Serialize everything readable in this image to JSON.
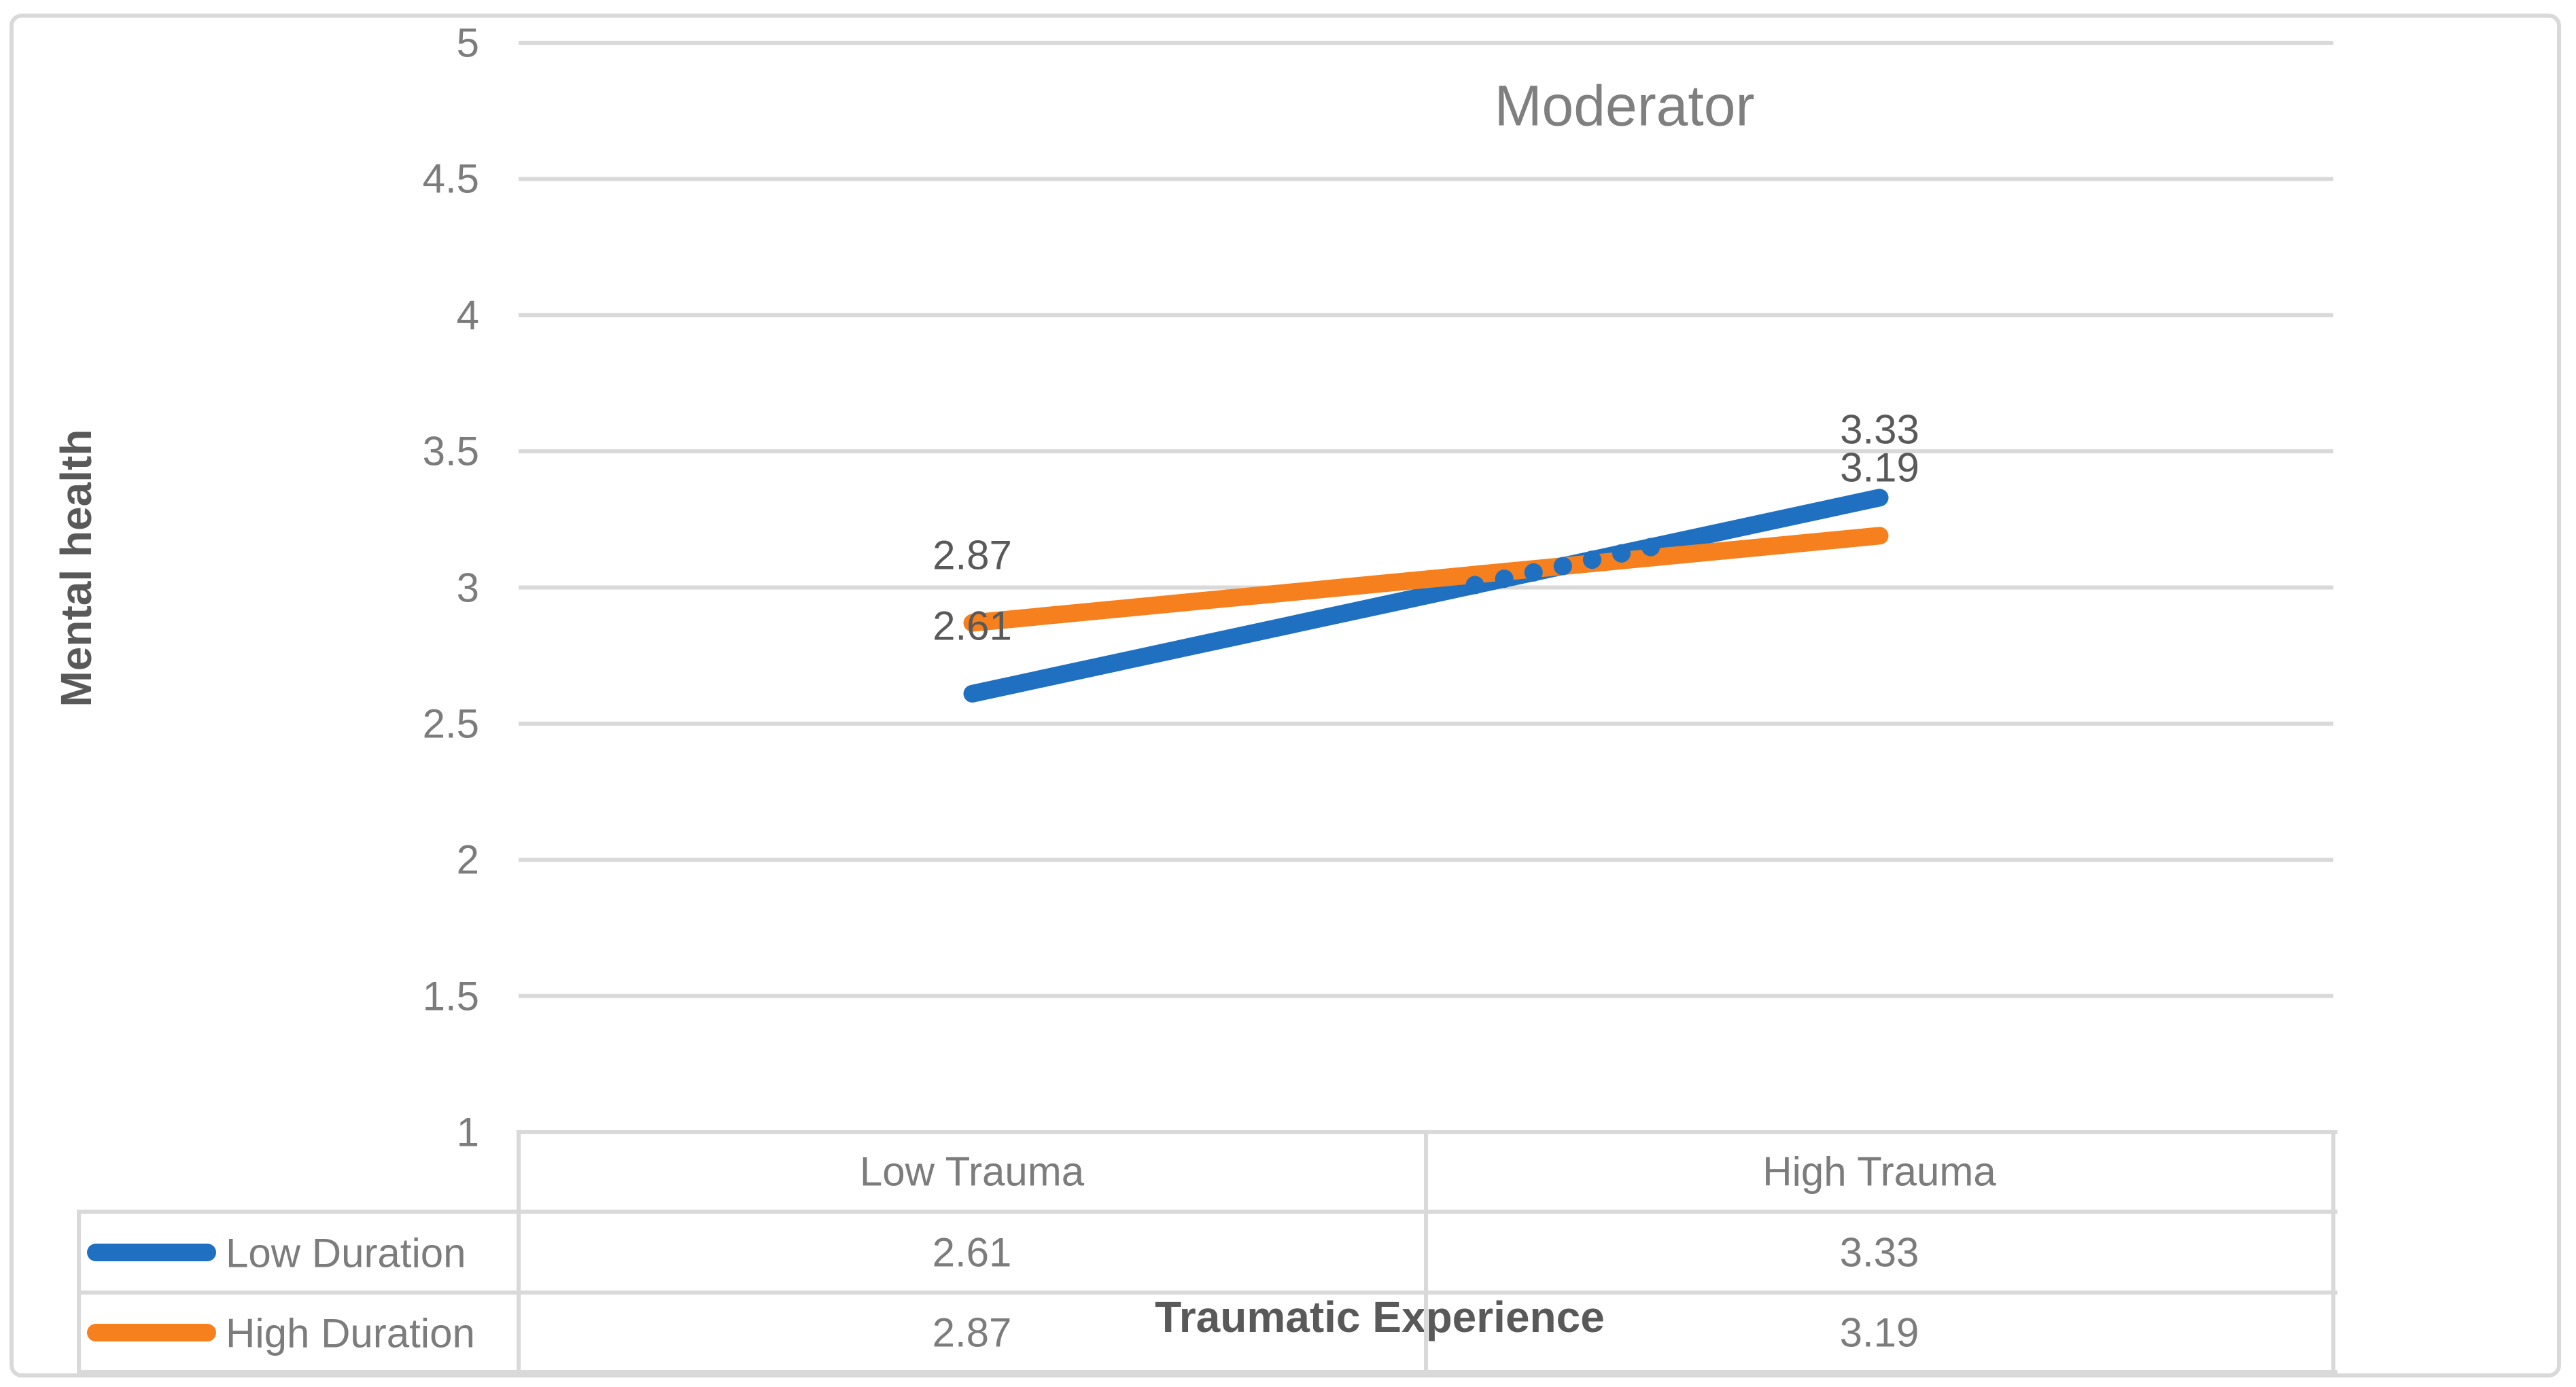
{
  "chart_data": {
    "type": "line",
    "title": "Moderator",
    "xlabel": "Traumatic Experience",
    "ylabel": "Mental health",
    "categories": [
      "Low Trauma",
      "High Trauma"
    ],
    "series": [
      {
        "name": "Low Duration",
        "color": "#1F70C1",
        "values": [
          2.61,
          3.33
        ]
      },
      {
        "name": "High Duration",
        "color": "#F6801E",
        "values": [
          2.87,
          3.19
        ]
      }
    ],
    "ylim": [
      1,
      5
    ],
    "ytick_step": 0.5,
    "ytick_labels": [
      "5",
      "4.5",
      "4",
      "3.5",
      "3",
      "2.5",
      "2",
      "1.5",
      "1"
    ],
    "grid": "horizontal-major",
    "legend_position": "data-table-left",
    "point_labels": [
      {
        "series": 0,
        "point": 0,
        "text": "2.61"
      },
      {
        "series": 1,
        "point": 0,
        "text": "2.87"
      },
      {
        "series": 0,
        "point": 1,
        "text": "3.33"
      },
      {
        "series": 1,
        "point": 1,
        "text": "3.19"
      }
    ]
  },
  "table": {
    "col_headers": [
      "Low Trauma",
      "High Trauma"
    ],
    "rows": [
      {
        "legend": "Low Duration",
        "cells": [
          "2.61",
          "3.33"
        ]
      },
      {
        "legend": "High Duration",
        "cells": [
          "2.87",
          "3.19"
        ]
      }
    ]
  },
  "theme": {
    "grid_color": "#D9D9D9",
    "axis_text_gray": "#7C7C7C",
    "dark_text_gray": "#595959",
    "title_gray": "#7F7F7F",
    "series_blue": "#1F70C1",
    "series_orange": "#F6801E"
  }
}
